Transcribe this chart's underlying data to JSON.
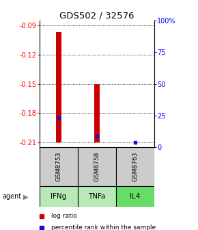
{
  "title": "GDS502 / 32576",
  "ylim_left": [
    -0.215,
    -0.085
  ],
  "yticks_left": [
    -0.21,
    -0.18,
    -0.15,
    -0.12,
    -0.09
  ],
  "ytick_labels_left": [
    "-0.21",
    "-0.18",
    "-0.15",
    "-0.12",
    "-0.09"
  ],
  "ylim_right": [
    0,
    100
  ],
  "yticks_right": [
    0,
    25,
    50,
    75,
    100
  ],
  "ytick_labels_right": [
    "0",
    "25",
    "50",
    "75",
    "100%"
  ],
  "columns": [
    "GSM8753",
    "GSM8758",
    "GSM8763"
  ],
  "agents": [
    "IFNg",
    "TNFa",
    "IL4"
  ],
  "bar_bottoms": [
    -0.21,
    -0.21,
    -0.21
  ],
  "bar_tops": [
    -0.097,
    -0.15,
    -0.21
  ],
  "percentile_values": [
    -0.185,
    -0.204,
    -0.21
  ],
  "bar_color": "#cc0000",
  "percentile_color": "#1111cc",
  "gsm_box_color": "#cccccc",
  "agent_box_colors": [
    "#b8eab8",
    "#b8eab8",
    "#66dd66"
  ],
  "legend_items": [
    "log ratio",
    "percentile rank within the sample"
  ],
  "legend_colors": [
    "#cc0000",
    "#1111cc"
  ],
  "agent_label": "agent"
}
